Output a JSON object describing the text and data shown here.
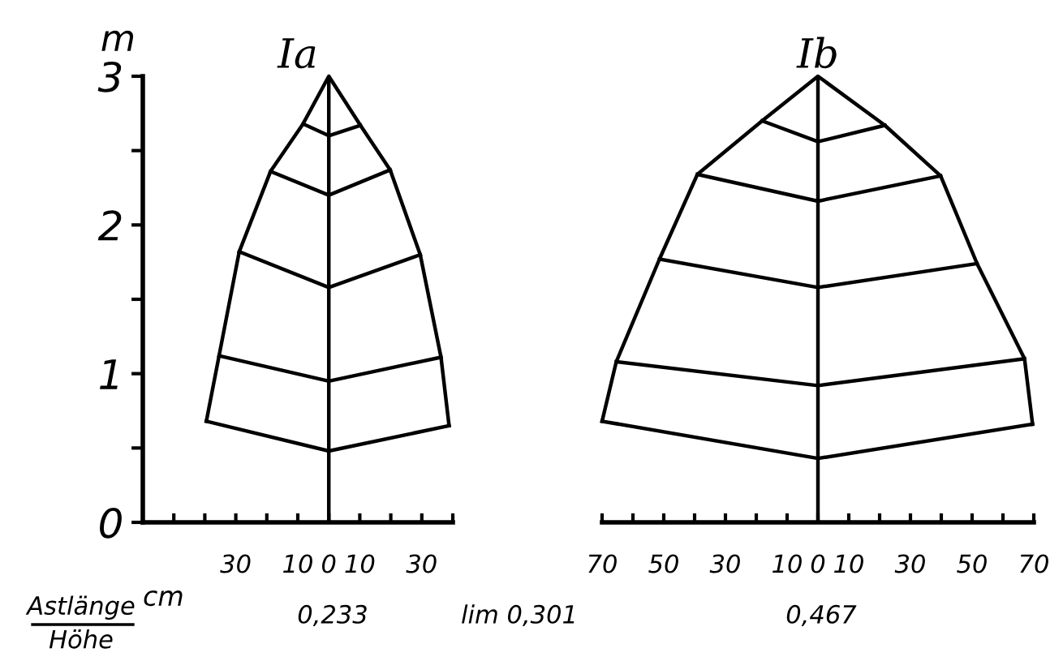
{
  "chart_data": [
    {
      "type": "line",
      "title": "Ia",
      "ylabel": "m",
      "xlabel": "cm",
      "xlim": [
        -60,
        40
      ],
      "ylim": [
        0,
        3
      ],
      "xticks": [
        {
          "value": -50,
          "label": null
        },
        {
          "value": -40,
          "label": null
        },
        {
          "value": -30,
          "label": "30"
        },
        {
          "value": -20,
          "label": null
        },
        {
          "value": -10,
          "label": "10"
        },
        0,
        {
          "value": 10,
          "label": "10"
        },
        {
          "value": 20,
          "label": null
        },
        {
          "value": 30,
          "label": "30"
        },
        {
          "value": 40,
          "label": null
        }
      ],
      "yticks": [
        0,
        {
          "value": 0.5,
          "label": null
        },
        1,
        {
          "value": 1.5,
          "label": null
        },
        2,
        {
          "value": 2.5,
          "label": null
        },
        3
      ],
      "marker": "none",
      "line_style": "solid",
      "ref_lines": [
        {
          "axis": "x",
          "value": 0,
          "color": "#000000"
        }
      ],
      "series": [
        {
          "color": "#000000",
          "x": [
            -39.5,
            -35.4,
            -28.9,
            -18.8,
            -8.3,
            0,
            10.2,
            19.8,
            29.5,
            36.2,
            38.8
          ],
          "values": [
            0.68,
            1.12,
            1.82,
            2.36,
            2.68,
            3.0,
            2.67,
            2.37,
            1.8,
            1.11,
            0.65
          ]
        },
        {
          "color": "#000000",
          "x": [
            -8.3,
            0,
            10.2
          ],
          "values": [
            2.68,
            2.6,
            2.67
          ]
        },
        {
          "color": "#000000",
          "x": [
            -18.8,
            0,
            19.8
          ],
          "values": [
            2.36,
            2.2,
            2.37
          ]
        },
        {
          "color": "#000000",
          "x": [
            -28.9,
            0,
            29.5
          ],
          "values": [
            1.82,
            1.58,
            1.8
          ]
        },
        {
          "color": "#000000",
          "x": [
            -35.4,
            0,
            36.2
          ],
          "values": [
            1.12,
            0.95,
            1.11
          ]
        },
        {
          "color": "#000000",
          "x": [
            -39.5,
            0,
            38.8
          ],
          "values": [
            0.68,
            0.48,
            0.65
          ]
        }
      ],
      "annotations": [
        "Astlänge",
        "Höhe",
        "0,233",
        "lim 0,301"
      ]
    },
    {
      "type": "line",
      "title": "Ib",
      "xlim": [
        -70,
        70
      ],
      "ylim": [
        0,
        3
      ],
      "tick_labels": "x",
      "xticks": [
        {
          "value": -70,
          "label": "70"
        },
        {
          "value": -60,
          "label": null
        },
        {
          "value": -50,
          "label": "50"
        },
        {
          "value": -40,
          "label": null
        },
        {
          "value": -30,
          "label": "30"
        },
        {
          "value": -20,
          "label": null
        },
        {
          "value": -10,
          "label": "10"
        },
        0,
        {
          "value": 10,
          "label": "10"
        },
        {
          "value": 20,
          "label": null
        },
        {
          "value": 30,
          "label": "30"
        },
        {
          "value": 40,
          "label": null
        },
        {
          "value": 50,
          "label": "50"
        },
        {
          "value": 60,
          "label": null
        },
        {
          "value": 70,
          "label": "70"
        }
      ],
      "marker": "none",
      "line_style": "solid",
      "ref_lines": [
        {
          "axis": "x",
          "value": 0,
          "color": "#000000"
        }
      ],
      "series": [
        {
          "color": "#000000",
          "x": [
            -70.0,
            -65.4,
            -51.4,
            -39.1,
            -18.1,
            0,
            21.7,
            39.8,
            51.6,
            67.0,
            69.6
          ],
          "values": [
            0.68,
            1.08,
            1.77,
            2.34,
            2.7,
            3.0,
            2.67,
            2.33,
            1.74,
            1.1,
            0.66
          ]
        },
        {
          "color": "#000000",
          "x": [
            -18.1,
            0,
            21.7
          ],
          "values": [
            2.7,
            2.56,
            2.67
          ]
        },
        {
          "color": "#000000",
          "x": [
            -39.1,
            0,
            39.8
          ],
          "values": [
            2.34,
            2.16,
            2.33
          ]
        },
        {
          "color": "#000000",
          "x": [
            -51.4,
            0,
            51.6
          ],
          "values": [
            1.77,
            1.58,
            1.74
          ]
        },
        {
          "color": "#000000",
          "x": [
            -65.4,
            0,
            67.0
          ],
          "values": [
            1.08,
            0.92,
            1.1
          ]
        },
        {
          "color": "#000000",
          "x": [
            -70.0,
            0,
            69.6
          ],
          "values": [
            0.68,
            0.43,
            0.66
          ]
        }
      ],
      "annotations": [
        "0,467"
      ]
    }
  ]
}
